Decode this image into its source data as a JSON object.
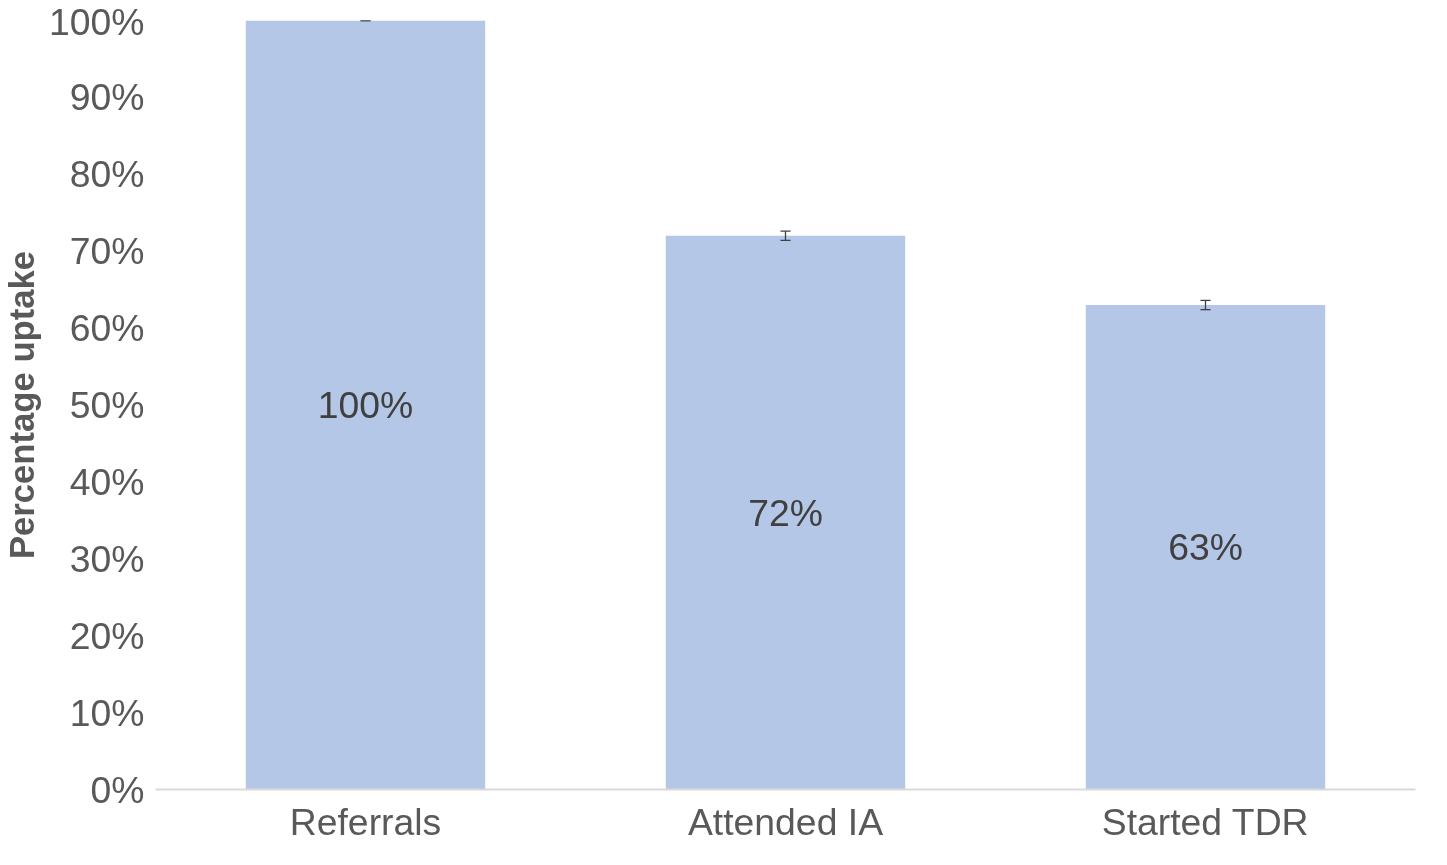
{
  "chart_data": {
    "type": "bar",
    "ylabel": "Percentage uptake",
    "categories": [
      "Referrals",
      "Attended IA",
      "Started TDR"
    ],
    "values": [
      100,
      72,
      63
    ],
    "errors": [
      0,
      0.6,
      0.6
    ],
    "color": "#b4c7e7",
    "value_labels": [
      "100%",
      "72%",
      "63%"
    ],
    "ylim": [
      0,
      100
    ],
    "yticks": [
      {
        "value": 0,
        "label": "0%"
      },
      {
        "value": 10,
        "label": "10%"
      },
      {
        "value": 20,
        "label": "20%"
      },
      {
        "value": 30,
        "label": "30%"
      },
      {
        "value": 40,
        "label": "40%"
      },
      {
        "value": 50,
        "label": "50%"
      },
      {
        "value": 60,
        "label": "60%"
      },
      {
        "value": 70,
        "label": "70%"
      },
      {
        "value": 80,
        "label": "80%"
      },
      {
        "value": 90,
        "label": "90%"
      },
      {
        "value": 100,
        "label": "100%"
      }
    ],
    "grid": false
  }
}
